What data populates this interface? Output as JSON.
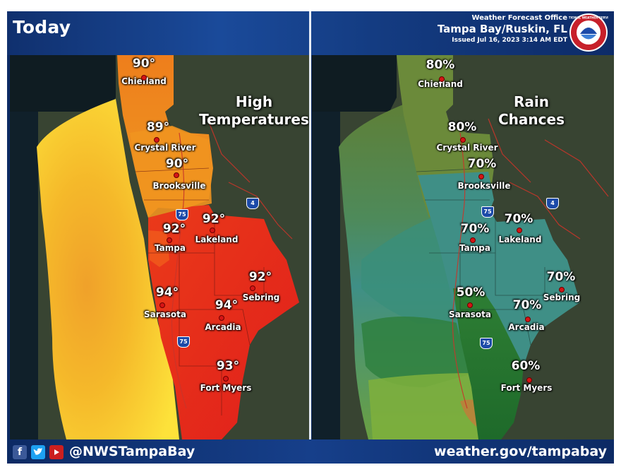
{
  "header": {
    "title": "Today",
    "office": "Weather Forecast Office",
    "location": "Tampa Bay/Ruskin, FL",
    "issued": "Issued Jul 16, 2023 3:14 AM EDT"
  },
  "logo": {
    "text": "NATIONAL WEATHER SERVICE"
  },
  "left_panel": {
    "title_line1": "High",
    "title_line2": "Temperatures",
    "cities": [
      {
        "value": "90°",
        "name": "Chiefland"
      },
      {
        "value": "89°",
        "name": "Crystal River"
      },
      {
        "value": "90°",
        "name": "Brooksville"
      },
      {
        "value": "92°",
        "name": "Lakeland"
      },
      {
        "value": "92°",
        "name": "Tampa"
      },
      {
        "value": "92°",
        "name": "Sebring"
      },
      {
        "value": "94°",
        "name": "Sarasota"
      },
      {
        "value": "94°",
        "name": "Arcadia"
      },
      {
        "value": "93°",
        "name": "Fort Myers"
      }
    ]
  },
  "right_panel": {
    "title_line1": "Rain",
    "title_line2": "Chances",
    "cities": [
      {
        "value": "80%",
        "name": "Chiefland"
      },
      {
        "value": "80%",
        "name": "Crystal River"
      },
      {
        "value": "70%",
        "name": "Brooksville"
      },
      {
        "value": "70%",
        "name": "Lakeland"
      },
      {
        "value": "70%",
        "name": "Tampa"
      },
      {
        "value": "70%",
        "name": "Sebring"
      },
      {
        "value": "50%",
        "name": "Sarasota"
      },
      {
        "value": "70%",
        "name": "Arcadia"
      },
      {
        "value": "60%",
        "name": "Fort Myers"
      }
    ]
  },
  "highways": {
    "i75": "75",
    "i4": "4"
  },
  "footer": {
    "handle": "@NWSTampaBay",
    "website": "weather.gov/tampabay",
    "social_icons": [
      "facebook-icon",
      "twitter-icon",
      "youtube-icon"
    ]
  },
  "colors": {
    "header_blue": "#10306e",
    "temp_yellow": "#f5c81e",
    "temp_orange": "#ef8a1a",
    "temp_red": "#e3221a",
    "rain_olive": "#6b8a3a",
    "rain_teal": "#3f8f86",
    "rain_green": "#2f7a30"
  }
}
